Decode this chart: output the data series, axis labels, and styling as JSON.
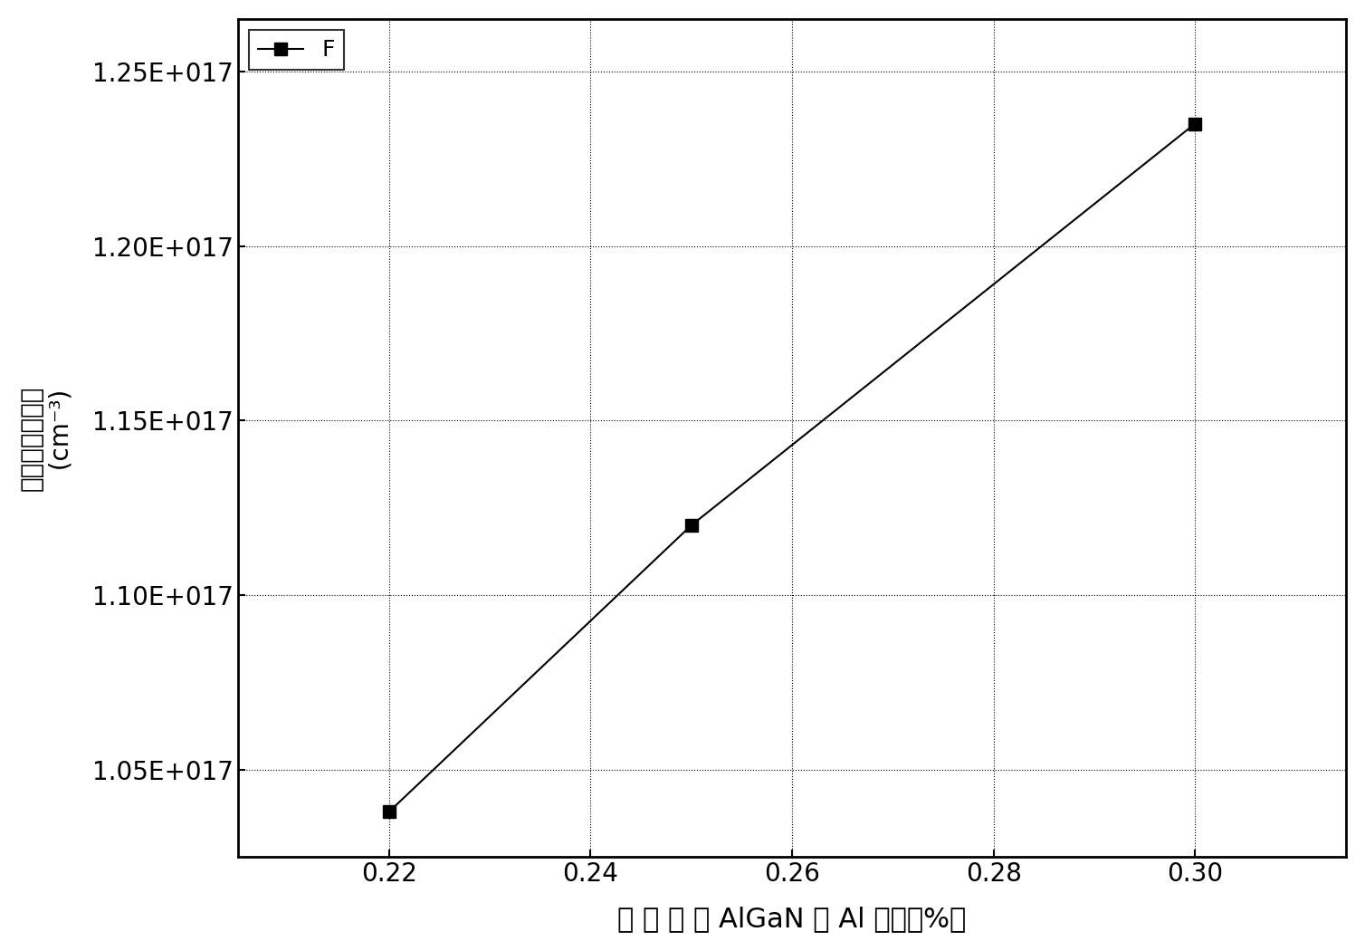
{
  "x": [
    0.22,
    0.25,
    0.3
  ],
  "y": [
    1.038e+17,
    1.12e+17,
    1.235e+17
  ],
  "line_color": "#000000",
  "marker": "s",
  "marker_size": 10,
  "line_width": 1.5,
  "legend_label": "F",
  "xlabel": "第 一 势 垒 AlGaN 中 Al 组分（%）",
  "ylabel_line1": "三维电子气浓度",
  "ylabel_line2": "  (cm⁻³)",
  "xlim": [
    0.205,
    0.315
  ],
  "ylim": [
    1.025e+17,
    1.265e+17
  ],
  "xticks": [
    0.22,
    0.24,
    0.26,
    0.28,
    0.3
  ],
  "yticks": [
    1.05e+17,
    1.1e+17,
    1.15e+17,
    1.2e+17,
    1.25e+17
  ],
  "ytick_labels": [
    "1.05E+017",
    "1.10E+017",
    "1.15E+017",
    "1.20E+017",
    "1.25E+017"
  ],
  "xtick_labels": [
    "0.22",
    "0.24",
    "0.26",
    "0.28",
    "0.30"
  ],
  "grid_color": "#000000",
  "grid_linestyle": ":",
  "grid_linewidth": 0.8,
  "background_color": "#ffffff",
  "xlabel_fontsize": 22,
  "ylabel_fontsize": 20,
  "tick_fontsize": 20,
  "legend_fontsize": 18,
  "marker_facecolor": "#000000",
  "marker_edgecolor": "#000000"
}
